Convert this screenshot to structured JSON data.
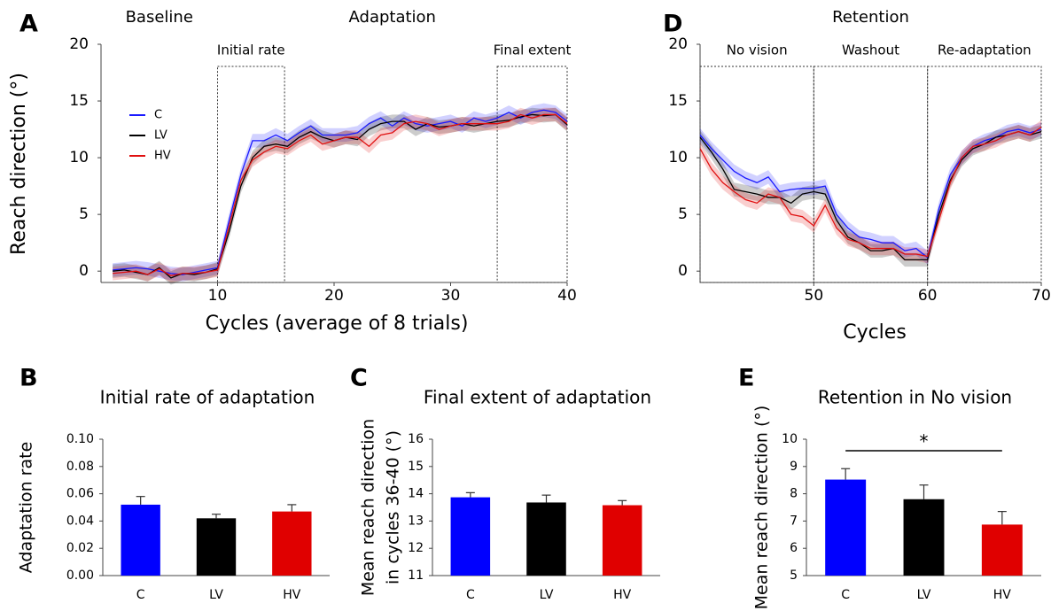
{
  "chart_data": [
    {
      "type": "line",
      "panel": "A",
      "xlabel": "Cycles (average of 8 trials)",
      "ylabel": "Reach direction (°)",
      "xlim": [
        0,
        40
      ],
      "ylim": [
        -1,
        20
      ],
      "xticks": [
        10,
        20,
        30,
        40
      ],
      "yticks": [
        0,
        5,
        10,
        15,
        20
      ],
      "legend": "upper left",
      "phases": [
        {
          "label": "Baseline",
          "xlim": [
            0,
            10
          ]
        },
        {
          "label": "Adaptation",
          "xlim": [
            10,
            40
          ]
        }
      ],
      "regions": [
        {
          "label": "Initial rate",
          "xlim": [
            10,
            15.75
          ]
        },
        {
          "label": "Final extent",
          "xlim": [
            34,
            40
          ]
        }
      ],
      "x": [
        1,
        2,
        3,
        4,
        5,
        6,
        7,
        8,
        9,
        10,
        11,
        12,
        13,
        14,
        15,
        16,
        17,
        18,
        19,
        20,
        21,
        22,
        23,
        24,
        25,
        26,
        27,
        28,
        29,
        30,
        31,
        32,
        33,
        34,
        35,
        36,
        37,
        38,
        39,
        40
      ],
      "series": [
        {
          "name": "C",
          "color": "#1a1aff",
          "error": 0.6,
          "values": [
            0.1,
            0.2,
            0.3,
            0.2,
            0.0,
            -0.2,
            -0.3,
            -0.1,
            0.1,
            0.3,
            4.5,
            8.5,
            11.5,
            11.5,
            12.0,
            11.5,
            12.2,
            12.8,
            12.0,
            12.0,
            12.0,
            12.2,
            13.0,
            13.5,
            12.8,
            13.5,
            13.0,
            12.8,
            13.0,
            13.2,
            12.8,
            13.5,
            13.2,
            13.5,
            14.0,
            13.5,
            14.0,
            14.2,
            14.0,
            13.2
          ]
        },
        {
          "name": "LV",
          "color": "#000000",
          "error": 0.6,
          "values": [
            0.0,
            0.1,
            -0.1,
            -0.3,
            0.3,
            -0.6,
            -0.2,
            -0.3,
            -0.1,
            0.2,
            3.5,
            7.5,
            10.0,
            11.0,
            11.2,
            11.0,
            11.8,
            12.3,
            11.8,
            11.5,
            11.8,
            11.6,
            12.5,
            13.0,
            13.2,
            13.2,
            12.5,
            13.0,
            12.7,
            12.8,
            13.0,
            12.8,
            13.0,
            13.2,
            13.3,
            13.6,
            13.8,
            13.7,
            13.8,
            12.9
          ]
        },
        {
          "name": "HV",
          "color": "#e01010",
          "error": 0.6,
          "values": [
            -0.2,
            -0.1,
            0.0,
            -0.3,
            0.2,
            -0.4,
            -0.2,
            -0.2,
            -0.1,
            0.1,
            4.0,
            8.0,
            9.8,
            10.5,
            11.0,
            10.8,
            11.5,
            12.0,
            11.2,
            11.5,
            11.8,
            11.8,
            11.0,
            12.0,
            12.2,
            13.0,
            13.2,
            13.0,
            12.5,
            12.8,
            13.0,
            13.0,
            13.0,
            13.0,
            13.2,
            13.8,
            13.5,
            13.8,
            13.8,
            13.0
          ]
        }
      ]
    },
    {
      "type": "line",
      "panel": "D",
      "title": "Retention",
      "xlabel": "Cycles",
      "xlim": [
        40,
        70
      ],
      "ylim": [
        -1,
        20
      ],
      "xticks": [
        50,
        60,
        70
      ],
      "yticks": [
        0,
        5,
        10,
        15,
        20
      ],
      "regions": [
        {
          "label": "No vision",
          "xlim": [
            40,
            50
          ]
        },
        {
          "label": "Washout",
          "xlim": [
            50,
            60
          ]
        },
        {
          "label": "Re-adaptation",
          "xlim": [
            60,
            70
          ]
        }
      ],
      "x": [
        40,
        41,
        42,
        43,
        44,
        45,
        46,
        47,
        48,
        49,
        50,
        51,
        52,
        53,
        54,
        55,
        56,
        57,
        58,
        59,
        60,
        61,
        62,
        63,
        64,
        65,
        66,
        67,
        68,
        69,
        70
      ],
      "series": [
        {
          "name": "C",
          "color": "#1a1aff",
          "error": 0.6,
          "values": [
            12.0,
            10.8,
            9.8,
            8.8,
            8.2,
            7.8,
            8.3,
            7.0,
            7.2,
            7.3,
            7.3,
            7.5,
            5.0,
            3.8,
            3.0,
            2.8,
            2.5,
            2.5,
            1.8,
            2.0,
            1.2,
            5.5,
            8.5,
            10.0,
            11.0,
            11.5,
            11.8,
            12.3,
            12.5,
            12.2,
            12.5
          ]
        },
        {
          "name": "LV",
          "color": "#000000",
          "error": 0.6,
          "values": [
            11.8,
            10.5,
            9.0,
            7.2,
            7.0,
            6.8,
            6.5,
            6.5,
            6.0,
            6.8,
            7.0,
            6.8,
            4.5,
            3.0,
            2.5,
            1.8,
            1.8,
            2.0,
            1.0,
            1.0,
            1.0,
            5.0,
            8.0,
            9.8,
            10.8,
            11.2,
            11.8,
            12.0,
            12.3,
            12.0,
            12.3
          ]
        },
        {
          "name": "HV",
          "color": "#e01010",
          "error": 0.6,
          "values": [
            10.8,
            9.0,
            7.8,
            7.0,
            6.3,
            6.0,
            6.8,
            6.5,
            5.0,
            4.8,
            4.0,
            5.8,
            3.8,
            2.8,
            2.5,
            2.0,
            2.0,
            2.0,
            1.5,
            1.5,
            1.3,
            4.5,
            7.8,
            10.0,
            11.0,
            11.2,
            11.5,
            12.0,
            12.3,
            12.0,
            12.7
          ]
        }
      ]
    },
    {
      "type": "bar",
      "panel": "B",
      "title": "Initial rate of adaptation",
      "ylabel_lines": [
        "Adaptation rate"
      ],
      "categories": [
        "C",
        "LV",
        "HV"
      ],
      "values": [
        0.052,
        0.042,
        0.047
      ],
      "errors": [
        0.006,
        0.003,
        0.005
      ],
      "colors": [
        "#0000ff",
        "#000000",
        "#e00000"
      ],
      "ylim": [
        0,
        0.1
      ],
      "yticks": [
        {
          "value": 0,
          "label": "0.00"
        },
        {
          "value": 0.02,
          "label": "0.02"
        },
        {
          "value": 0.04,
          "label": "0.04"
        },
        {
          "value": 0.06,
          "label": "0.06"
        },
        {
          "value": 0.08,
          "label": "0.08"
        },
        {
          "value": 0.1,
          "label": "0.10"
        }
      ]
    },
    {
      "type": "bar",
      "panel": "C",
      "title": "Final extent of adaptation",
      "ylabel_lines": [
        "Mean reach direction",
        "in cycles 36-40 (°)"
      ],
      "categories": [
        "C",
        "LV",
        "HV"
      ],
      "values": [
        13.87,
        13.68,
        13.58
      ],
      "errors": [
        0.17,
        0.27,
        0.17
      ],
      "colors": [
        "#0000ff",
        "#000000",
        "#e00000"
      ],
      "ylim": [
        11,
        16
      ],
      "yticks": [
        11,
        12,
        13,
        14,
        15,
        16
      ]
    },
    {
      "type": "bar",
      "panel": "E",
      "title": "Retention in No vision",
      "ylabel_lines": [
        "Mean reach direction (°)"
      ],
      "categories": [
        "C",
        "LV",
        "HV"
      ],
      "values": [
        8.52,
        7.8,
        6.87
      ],
      "errors": [
        0.4,
        0.52,
        0.48
      ],
      "colors": [
        "#0000ff",
        "#000000",
        "#e00000"
      ],
      "ylim": [
        5,
        10
      ],
      "yticks": [
        5,
        6,
        7,
        8,
        9,
        10
      ],
      "significance": [
        {
          "label": "*",
          "between": [
            0,
            2
          ]
        }
      ]
    }
  ]
}
